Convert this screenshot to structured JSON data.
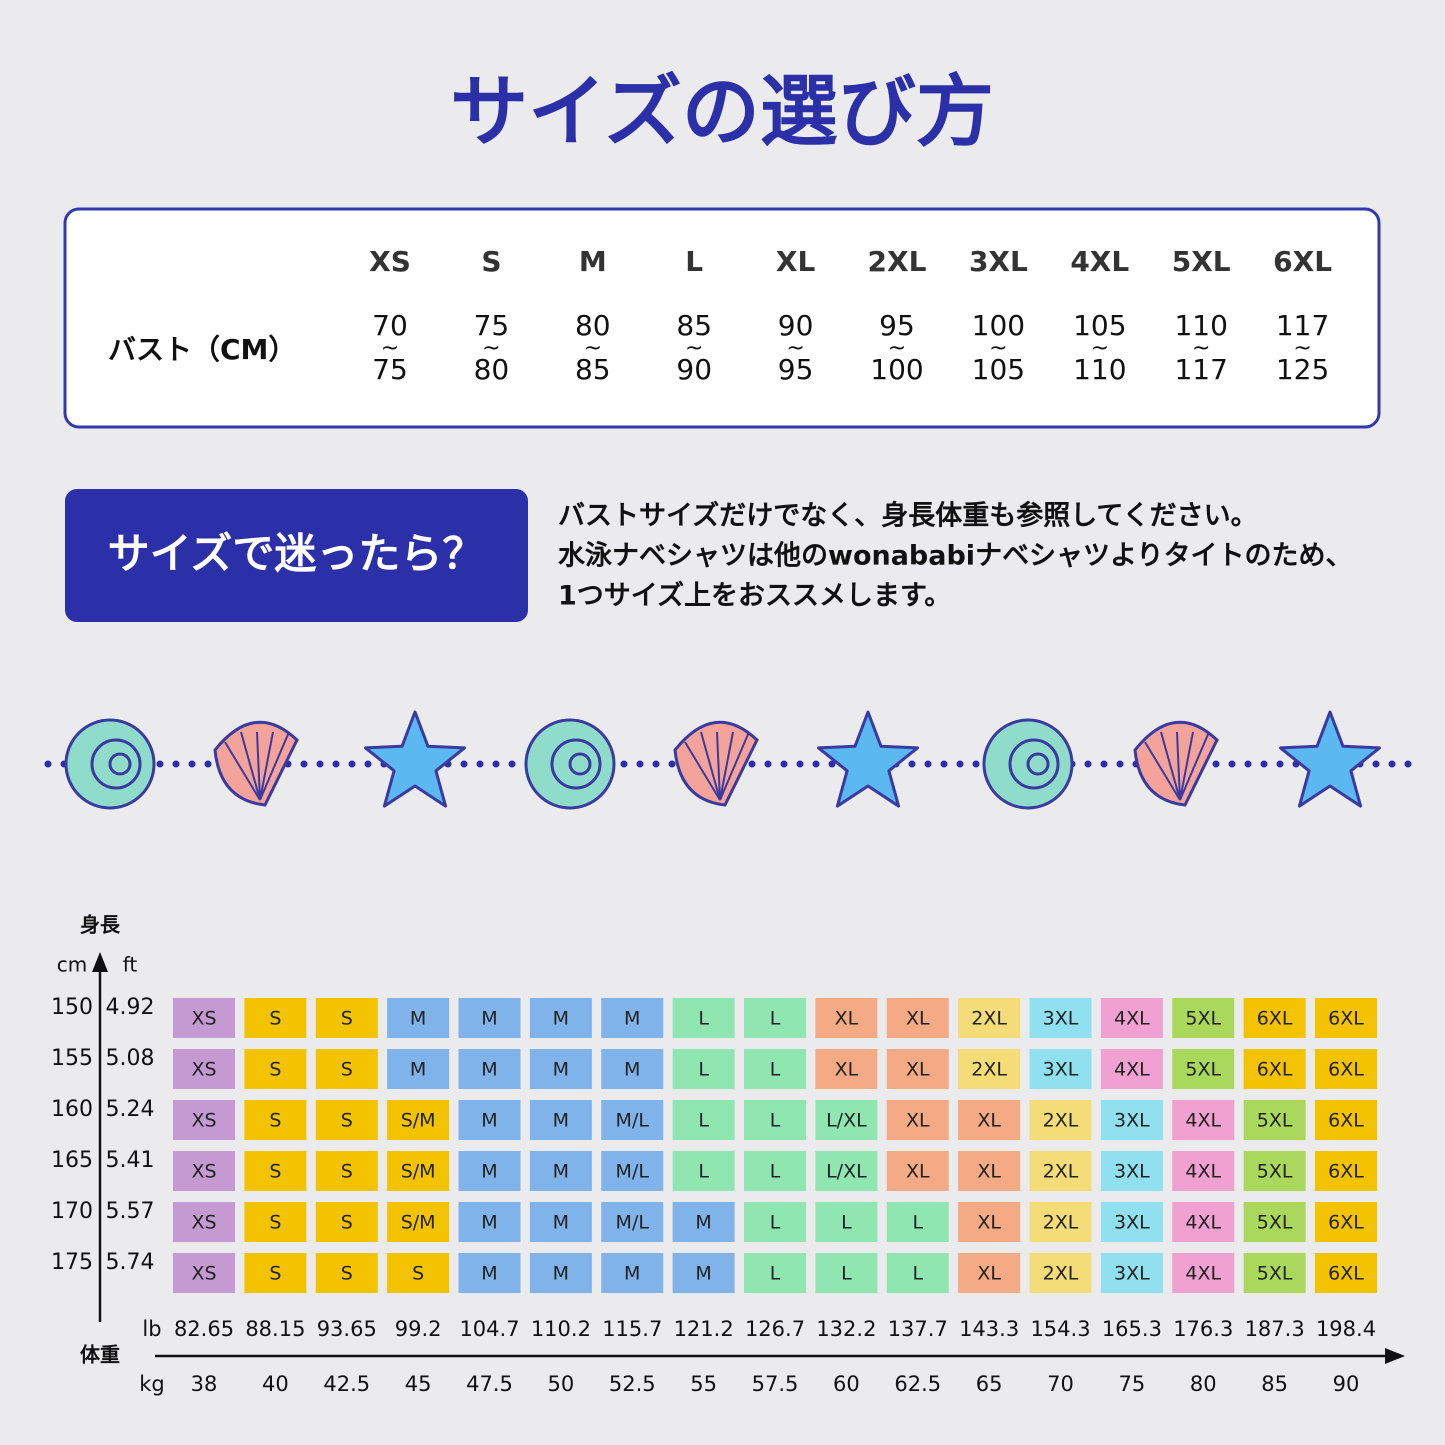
{
  "title": "サイズの選び方",
  "bust_table": {
    "row_label": "バスト（CM）",
    "separator": "~",
    "sizes": [
      "XS",
      "S",
      "M",
      "L",
      "XL",
      "2XL",
      "3XL",
      "4XL",
      "5XL",
      "6XL"
    ],
    "ranges": [
      [
        70,
        75
      ],
      [
        75,
        80
      ],
      [
        80,
        85
      ],
      [
        85,
        90
      ],
      [
        90,
        95
      ],
      [
        95,
        100
      ],
      [
        100,
        105
      ],
      [
        105,
        110
      ],
      [
        110,
        117
      ],
      [
        117,
        125
      ]
    ]
  },
  "note": {
    "label": "サイズで迷ったら？",
    "lines": [
      "バストサイズだけでなく、身長体重も参照してください。",
      "水泳ナベシャツは他のwonababiナベシャツよりタイトのため、",
      "1つサイズ上をおススメします。"
    ]
  },
  "size_chart": {
    "height_label": "身長",
    "cm_label": "cm",
    "ft_label": "ft",
    "weight_label": "体重",
    "lb_label": "lb",
    "kg_label": "kg",
    "heights_cm": [
      150,
      155,
      160,
      165,
      170,
      175
    ],
    "heights_ft": [
      4.92,
      5.08,
      5.24,
      5.41,
      5.57,
      5.74
    ],
    "weights_lb": [
      82.65,
      88.15,
      93.65,
      99.2,
      104.7,
      110.2,
      115.7,
      121.2,
      126.7,
      132.2,
      137.7,
      143.3,
      154.3,
      165.3,
      176.3,
      187.3,
      198.4
    ],
    "weights_kg": [
      38,
      40,
      42.5,
      45,
      47.5,
      50,
      52.5,
      55,
      57.5,
      60,
      62.5,
      65,
      70,
      75,
      80,
      85,
      90
    ],
    "rows": [
      [
        "XS",
        "S",
        "S",
        "M",
        "M",
        "M",
        "M",
        "L",
        "L",
        "XL",
        "XL",
        "2XL",
        "3XL",
        "4XL",
        "5XL",
        "6XL",
        "6XL"
      ],
      [
        "XS",
        "S",
        "S",
        "M",
        "M",
        "M",
        "M",
        "L",
        "L",
        "XL",
        "XL",
        "2XL",
        "3XL",
        "4XL",
        "5XL",
        "6XL",
        "6XL"
      ],
      [
        "XS",
        "S",
        "S",
        "S/M",
        "M",
        "M",
        "M/L",
        "L",
        "L",
        "L/XL",
        "XL",
        "XL",
        "2XL",
        "3XL",
        "4XL",
        "5XL",
        "6XL"
      ],
      [
        "XS",
        "S",
        "S",
        "S/M",
        "M",
        "M",
        "M/L",
        "L",
        "L",
        "L/XL",
        "XL",
        "XL",
        "2XL",
        "3XL",
        "4XL",
        "5XL",
        "6XL"
      ],
      [
        "XS",
        "S",
        "S",
        "S/M",
        "M",
        "M",
        "M/L",
        "M",
        "L",
        "L",
        "L",
        "XL",
        "2XL",
        "3XL",
        "4XL",
        "5XL",
        "6XL"
      ],
      [
        "XS",
        "S",
        "S",
        "S",
        "M",
        "M",
        "M",
        "M",
        "L",
        "L",
        "L",
        "XL",
        "2XL",
        "3XL",
        "4XL",
        "5XL",
        "6XL"
      ]
    ],
    "size_colors": {
      "XS": "#c59ad2",
      "S": "#f4c300",
      "S/M": "#f4c300",
      "M": "#80b3ea",
      "M/L": "#80b3ea",
      "L": "#8fe6b1",
      "L/XL": "#8fe6b1",
      "XL": "#f4aa84",
      "2XL": "#f4dd78",
      "3XL": "#90e0f0",
      "4XL": "#f0a1d2",
      "5XL": "#a9d85c",
      "6XL": "#f4c300"
    }
  }
}
